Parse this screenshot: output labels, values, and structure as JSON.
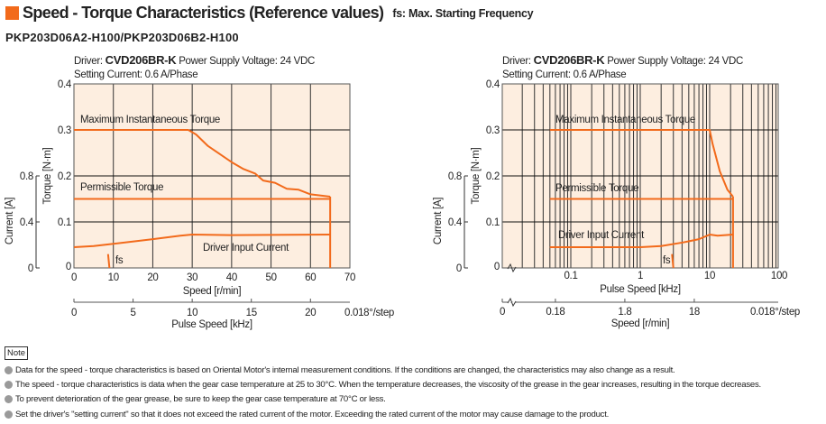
{
  "header": {
    "title": "Speed - Torque Characteristics (Reference values)",
    "subtitle": "fs: Max. Starting Frequency",
    "model": "PKP203D06A2-H100/PKP203D06B2-H100"
  },
  "colors": {
    "accent": "#f26a1b",
    "plot_bg": "#fdeee0",
    "curve": "#f26a1b"
  },
  "chart_data": [
    {
      "type": "line",
      "driver_prefix": "Driver: ",
      "driver": "CVD206BR-K",
      "voltage": "Power Supply Voltage: 24 VDC",
      "setting": "Setting Current: 0.6 A/Phase",
      "xlabel": "Speed [r/min]",
      "xlim": [
        0,
        70
      ],
      "xticks": [
        "0",
        "10",
        "20",
        "30",
        "40",
        "50",
        "60",
        "70"
      ],
      "ylabel": "Torque [N·m]",
      "ylim": [
        0,
        0.4
      ],
      "yticks": [
        "0",
        "0.1",
        "0.2",
        "0.3",
        "0.4"
      ],
      "y2label": "Current [A]",
      "y2ticks": [
        "0",
        "0.4",
        "0.8"
      ],
      "x2label": "Pulse Speed [kHz]",
      "x2ticks": [
        "0",
        "5",
        "10",
        "15",
        "20"
      ],
      "x2unit": "0.018°/step",
      "grid": true,
      "series": [
        {
          "name": "Maximum Instantaneous Torque",
          "x": [
            0,
            29,
            31,
            34,
            40,
            43,
            46,
            48,
            51,
            54,
            57,
            60,
            65
          ],
          "y": [
            0.3,
            0.3,
            0.29,
            0.265,
            0.23,
            0.215,
            0.205,
            0.19,
            0.185,
            0.172,
            0.17,
            0.16,
            0.155
          ]
        },
        {
          "name": "Permissible Torque",
          "x": [
            0,
            65
          ],
          "y": [
            0.15,
            0.15
          ]
        },
        {
          "name": "Driver Input Current",
          "x": [
            0,
            5,
            10,
            20,
            27,
            30,
            40,
            65
          ],
          "y_current": [
            0.18,
            0.19,
            0.21,
            0.25,
            0.28,
            0.29,
            0.285,
            0.29
          ]
        }
      ],
      "fs_label": "fs",
      "fs": 9
    },
    {
      "type": "line",
      "driver_prefix": "Driver: ",
      "driver": "CVD206BR-K",
      "voltage": "Power Supply Voltage: 24 VDC",
      "setting": "Setting Current: 0.6 A/Phase",
      "xlabel": "Pulse Speed [kHz]",
      "xscale": "log",
      "xlim": [
        0.01,
        100
      ],
      "xticks": [
        "0.1",
        "1",
        "10",
        "100"
      ],
      "ylabel": "Torque [N·m]",
      "ylim": [
        0,
        0.4
      ],
      "yticks": [
        "0",
        "0.1",
        "0.2",
        "0.3",
        "0.4"
      ],
      "y2label": "Current [A]",
      "y2ticks": [
        "0",
        "0.4",
        "0.8"
      ],
      "x2label": "Speed [r/min]",
      "x2ticks": [
        "0",
        "0.18",
        "1.8",
        "18"
      ],
      "x2unit": "0.018°/step",
      "grid": true,
      "series": [
        {
          "name": "Maximum Instantaneous Torque",
          "x": [
            0.05,
            10,
            11,
            14,
            18,
            21.7
          ],
          "y": [
            0.3,
            0.3,
            0.27,
            0.21,
            0.17,
            0.155
          ]
        },
        {
          "name": "Permissible Torque",
          "x": [
            0.05,
            21.7
          ],
          "y": [
            0.15,
            0.15
          ]
        },
        {
          "name": "Driver Input Current",
          "x": [
            0.05,
            1,
            2,
            4,
            7,
            10,
            13,
            21.7
          ],
          "y_current": [
            0.18,
            0.18,
            0.19,
            0.22,
            0.25,
            0.29,
            0.28,
            0.29
          ]
        }
      ],
      "fs_label": "fs",
      "fs": 3
    }
  ],
  "notes": {
    "label": "Note",
    "items": [
      "Data for the speed - torque characteristics is based on Oriental Motor's internal measurement conditions. If the conditions are changed, the characteristics may also change as a result.",
      "The speed - torque characteristics is data when the gear case temperature at 25 to 30°C. When the temperature decreases, the viscosity of the grease in the gear increases, resulting in the torque decreases.",
      "To prevent deterioration of the gear grease, be sure to keep the gear case temperature at 70°C or less.",
      "Set the driver's \"setting current\" so that it does not exceed the rated current of the motor. Exceeding the rated current of the motor may cause damage to the product."
    ]
  }
}
